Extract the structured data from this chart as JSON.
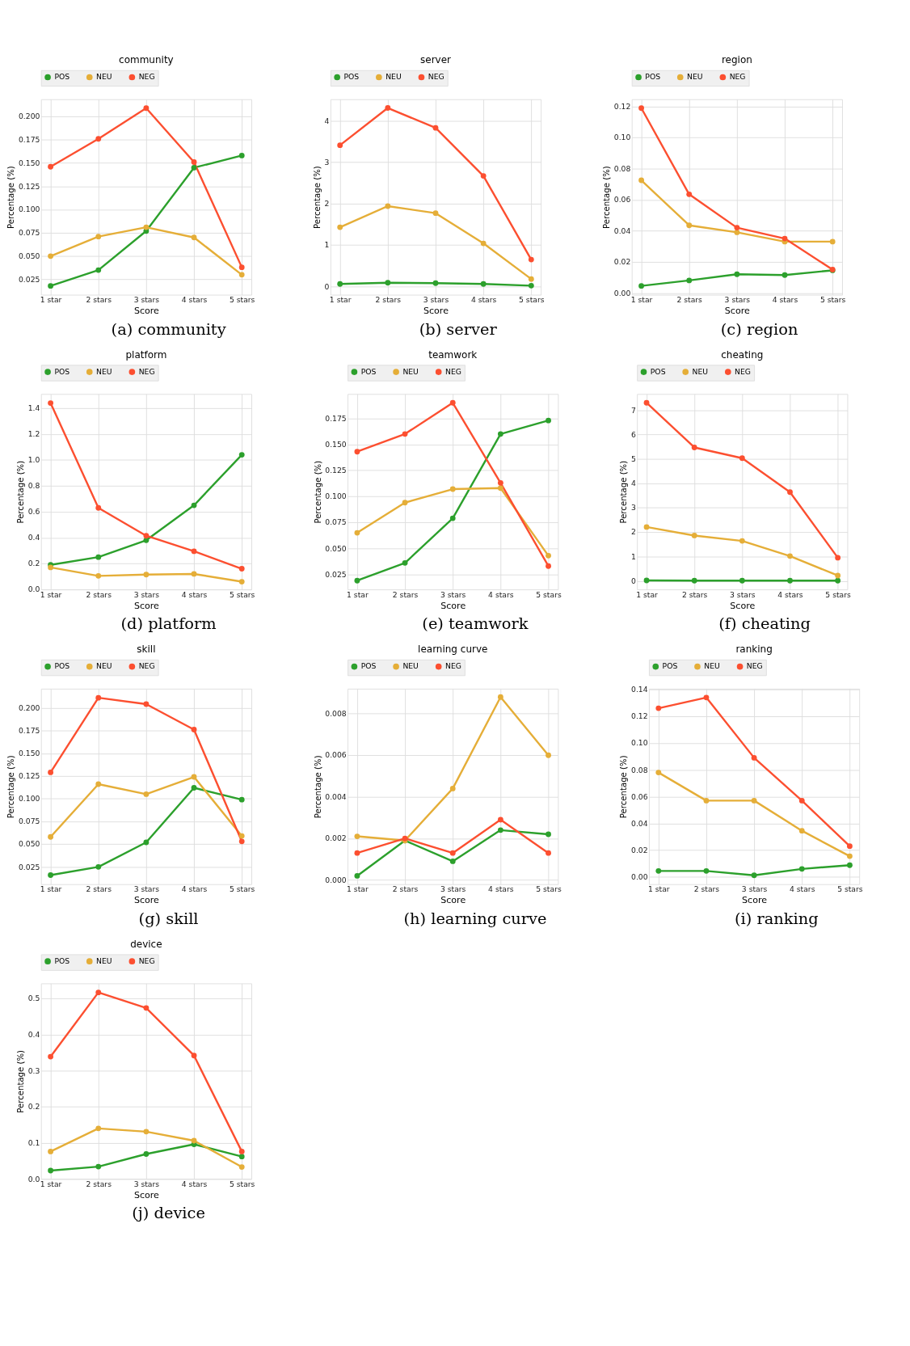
{
  "chart_data": [
    {
      "type": "line",
      "title": "community",
      "xlabel": "Score",
      "ylabel": "Percentage (%)",
      "annotations": [
        "(a) community"
      ],
      "categories": [
        "1 star",
        "2 stars",
        "3 stars",
        "4 stars",
        "5 stars"
      ],
      "ylim": [
        0.0085,
        0.2185
      ],
      "yticks": [
        0.025,
        {
          "value": 0.05,
          "label": "0.050"
        },
        0.075,
        {
          "value": 0.1,
          "label": "0.100"
        },
        0.125,
        {
          "value": 0.15,
          "label": "0.150"
        },
        0.175,
        {
          "value": 0.2,
          "label": "0.200"
        }
      ],
      "grid": true,
      "legend": "top",
      "marker": "circle",
      "line_style": "solid",
      "series": [
        {
          "name": "POS",
          "color": "#2ca02c",
          "values": [
            0.018,
            0.035,
            0.077,
            0.145,
            0.158
          ]
        },
        {
          "name": "NEU",
          "color": "#e5ae38",
          "values": [
            0.05,
            0.071,
            0.081,
            0.07,
            0.03
          ]
        },
        {
          "name": "NEG",
          "color": "#fc4f30",
          "values": [
            0.146,
            0.176,
            0.209,
            0.151,
            0.038
          ]
        }
      ]
    },
    {
      "type": "line",
      "title": "server",
      "xlabel": "Score",
      "ylabel": "Percentage (%)",
      "annotations": [
        "(b) server"
      ],
      "categories": [
        "1 star",
        "2 stars",
        "3 stars",
        "4 stars",
        "5 stars"
      ],
      "ylim": [
        -0.2,
        4.52
      ],
      "yticks": [
        0,
        1,
        2,
        3,
        4
      ],
      "grid": true,
      "legend": "top",
      "marker": "circle",
      "line_style": "solid",
      "series": [
        {
          "name": "POS",
          "color": "#2ca02c",
          "values": [
            0.06,
            0.09,
            0.08,
            0.06,
            0.02
          ]
        },
        {
          "name": "NEU",
          "color": "#e5ae38",
          "values": [
            1.43,
            1.94,
            1.77,
            1.04,
            0.18
          ]
        },
        {
          "name": "NEG",
          "color": "#fc4f30",
          "values": [
            3.41,
            4.31,
            3.83,
            2.67,
            0.65
          ]
        }
      ]
    },
    {
      "type": "line",
      "title": "region",
      "xlabel": "Score",
      "ylabel": "Percentage (%)",
      "annotations": [
        "(c) region"
      ],
      "categories": [
        "1 star",
        "2 stars",
        "3 stars",
        "4 stars",
        "5 stars"
      ],
      "ylim": [
        -0.0012,
        0.1247
      ],
      "yticks": [
        {
          "value": 0,
          "label": "0.00"
        },
        0.02,
        0.04,
        0.06,
        0.08,
        {
          "value": 0.1,
          "label": "0.10"
        },
        0.12
      ],
      "grid": true,
      "legend": "top",
      "marker": "circle",
      "line_style": "solid",
      "series": [
        {
          "name": "POS",
          "color": "#2ca02c",
          "values": [
            0.0045,
            0.008,
            0.012,
            0.0115,
            0.0145
          ]
        },
        {
          "name": "NEU",
          "color": "#e5ae38",
          "values": [
            0.0725,
            0.0435,
            0.039,
            0.033,
            0.033
          ]
        },
        {
          "name": "NEG",
          "color": "#fc4f30",
          "values": [
            0.119,
            0.0635,
            0.042,
            0.035,
            0.015
          ]
        }
      ]
    },
    {
      "type": "line",
      "title": "platform",
      "xlabel": "Score",
      "ylabel": "Percentage (%)",
      "annotations": [
        "(d) platform"
      ],
      "categories": [
        "1 star",
        "2 stars",
        "3 stars",
        "4 stars",
        "5 stars"
      ],
      "ylim": [
        0,
        1.51
      ],
      "yticks": [
        {
          "value": 0,
          "label": "0.0"
        },
        0.2,
        0.4,
        0.6,
        0.8,
        {
          "value": 1,
          "label": "1.0"
        },
        1.2,
        1.4
      ],
      "grid": true,
      "legend": "top",
      "marker": "circle",
      "line_style": "solid",
      "series": [
        {
          "name": "POS",
          "color": "#2ca02c",
          "values": [
            0.19,
            0.25,
            0.38,
            0.65,
            1.04
          ]
        },
        {
          "name": "NEU",
          "color": "#e5ae38",
          "values": [
            0.17,
            0.105,
            0.115,
            0.12,
            0.06
          ]
        },
        {
          "name": "NEG",
          "color": "#fc4f30",
          "values": [
            1.44,
            0.63,
            0.415,
            0.295,
            0.16
          ]
        }
      ]
    },
    {
      "type": "line",
      "title": "teamwork",
      "xlabel": "Score",
      "ylabel": "Percentage (%)",
      "annotations": [
        "(e) teamwork"
      ],
      "categories": [
        "1 star",
        "2 stars",
        "3 stars",
        "4 stars",
        "5 stars"
      ],
      "ylim": [
        0.0105,
        0.1985
      ],
      "yticks": [
        0.025,
        {
          "value": 0.05,
          "label": "0.050"
        },
        0.075,
        {
          "value": 0.1,
          "label": "0.100"
        },
        0.125,
        {
          "value": 0.15,
          "label": "0.150"
        },
        0.175
      ],
      "grid": true,
      "legend": "top",
      "marker": "circle",
      "line_style": "solid",
      "series": [
        {
          "name": "POS",
          "color": "#2ca02c",
          "values": [
            0.019,
            0.036,
            0.079,
            0.16,
            0.173
          ]
        },
        {
          "name": "NEU",
          "color": "#e5ae38",
          "values": [
            0.065,
            0.094,
            0.107,
            0.108,
            0.043
          ]
        },
        {
          "name": "NEG",
          "color": "#fc4f30",
          "values": [
            0.143,
            0.16,
            0.19,
            0.113,
            0.033
          ]
        }
      ]
    },
    {
      "type": "line",
      "title": "cheating",
      "xlabel": "Score",
      "ylabel": "Percentage (%)",
      "annotations": [
        "(f) cheating"
      ],
      "categories": [
        "1 star",
        "2 stars",
        "3 stars",
        "4 stars",
        "5 stars"
      ],
      "ylim": [
        -0.35,
        7.66
      ],
      "yticks": [
        0,
        1,
        2,
        3,
        4,
        5,
        6,
        7
      ],
      "grid": true,
      "legend": "top",
      "marker": "circle",
      "line_style": "solid",
      "series": [
        {
          "name": "POS",
          "color": "#2ca02c",
          "values": [
            0.02,
            0.01,
            0.01,
            0.01,
            0.01
          ]
        },
        {
          "name": "NEU",
          "color": "#e5ae38",
          "values": [
            2.21,
            1.86,
            1.64,
            1.02,
            0.22
          ]
        },
        {
          "name": "NEG",
          "color": "#fc4f30",
          "values": [
            7.3,
            5.47,
            5.03,
            3.64,
            0.95
          ]
        }
      ]
    },
    {
      "type": "line",
      "title": "skill",
      "xlabel": "Score",
      "ylabel": "Percentage (%)",
      "annotations": [
        "(g) skill"
      ],
      "categories": [
        "1 star",
        "2 stars",
        "3 stars",
        "4 stars",
        "5 stars"
      ],
      "ylim": [
        0.006,
        0.221
      ],
      "yticks": [
        0.025,
        {
          "value": 0.05,
          "label": "0.050"
        },
        0.075,
        {
          "value": 0.1,
          "label": "0.100"
        },
        0.125,
        {
          "value": 0.15,
          "label": "0.150"
        },
        0.175,
        {
          "value": 0.2,
          "label": "0.200"
        }
      ],
      "grid": true,
      "legend": "top",
      "marker": "circle",
      "line_style": "solid",
      "series": [
        {
          "name": "POS",
          "color": "#2ca02c",
          "values": [
            0.016,
            0.025,
            0.052,
            0.112,
            0.099
          ]
        },
        {
          "name": "NEU",
          "color": "#e5ae38",
          "values": [
            0.058,
            0.116,
            0.105,
            0.124,
            0.059
          ]
        },
        {
          "name": "NEG",
          "color": "#fc4f30",
          "values": [
            0.129,
            0.211,
            0.204,
            0.176,
            0.053
          ]
        }
      ]
    },
    {
      "type": "line",
      "title": "learning curve",
      "xlabel": "Score",
      "ylabel": "Percentage (%)",
      "annotations": [
        "(h) learning curve"
      ],
      "categories": [
        "1 star",
        "2 stars",
        "3 stars",
        "4 stars",
        "5 stars"
      ],
      "ylim": [
        -0.0002,
        0.0092
      ],
      "yticks": [
        {
          "value": 0,
          "label": "0.000"
        },
        0.002,
        0.004,
        0.006,
        0.008
      ],
      "grid": true,
      "legend": "top",
      "marker": "circle",
      "line_style": "solid",
      "series": [
        {
          "name": "POS",
          "color": "#2ca02c",
          "values": [
            0.0002,
            0.0019,
            0.0009,
            0.0024,
            0.0022
          ]
        },
        {
          "name": "NEU",
          "color": "#e5ae38",
          "values": [
            0.0021,
            0.0019,
            0.0044,
            0.0088,
            0.006
          ]
        },
        {
          "name": "NEG",
          "color": "#fc4f30",
          "values": [
            0.0013,
            0.002,
            0.0013,
            0.0029,
            0.0013
          ]
        }
      ]
    },
    {
      "type": "line",
      "title": "ranking",
      "xlabel": "Score",
      "ylabel": "Percentage (%)",
      "annotations": [
        "(i) ranking"
      ],
      "categories": [
        "1 star",
        "2 stars",
        "3 stars",
        "4 stars",
        "5 stars"
      ],
      "ylim": [
        -0.0054,
        0.1406
      ],
      "yticks": [
        {
          "value": 0,
          "label": "0.00"
        },
        0.02,
        0.04,
        0.06,
        0.08,
        {
          "value": 0.1,
          "label": "0.10"
        },
        0.12,
        0.14
      ],
      "grid": true,
      "legend": "top",
      "marker": "circle",
      "line_style": "solid",
      "series": [
        {
          "name": "POS",
          "color": "#2ca02c",
          "values": [
            0.0045,
            0.0045,
            0.0012,
            0.006,
            0.0088
          ]
        },
        {
          "name": "NEU",
          "color": "#e5ae38",
          "values": [
            0.078,
            0.057,
            0.057,
            0.0345,
            0.0155
          ]
        },
        {
          "name": "NEG",
          "color": "#fc4f30",
          "values": [
            0.126,
            0.134,
            0.089,
            0.057,
            0.023
          ]
        }
      ]
    },
    {
      "type": "line",
      "title": "device",
      "xlabel": "Score",
      "ylabel": "Percentage (%)",
      "annotations": [
        "(j) device"
      ],
      "categories": [
        "1 star",
        "2 stars",
        "3 stars",
        "4 stars",
        "5 stars"
      ],
      "ylim": [
        0,
        0.542
      ],
      "yticks": [
        {
          "value": 0,
          "label": "0.0"
        },
        0.1,
        0.2,
        0.3,
        0.4,
        0.5
      ],
      "grid": true,
      "legend": "top",
      "marker": "circle",
      "line_style": "solid",
      "series": [
        {
          "name": "POS",
          "color": "#2ca02c",
          "values": [
            0.023,
            0.034,
            0.069,
            0.096,
            0.062
          ]
        },
        {
          "name": "NEU",
          "color": "#e5ae38",
          "values": [
            0.076,
            0.14,
            0.131,
            0.106,
            0.033
          ]
        },
        {
          "name": "NEG",
          "color": "#fc4f30",
          "values": [
            0.339,
            0.517,
            0.474,
            0.342,
            0.076
          ]
        }
      ]
    }
  ]
}
